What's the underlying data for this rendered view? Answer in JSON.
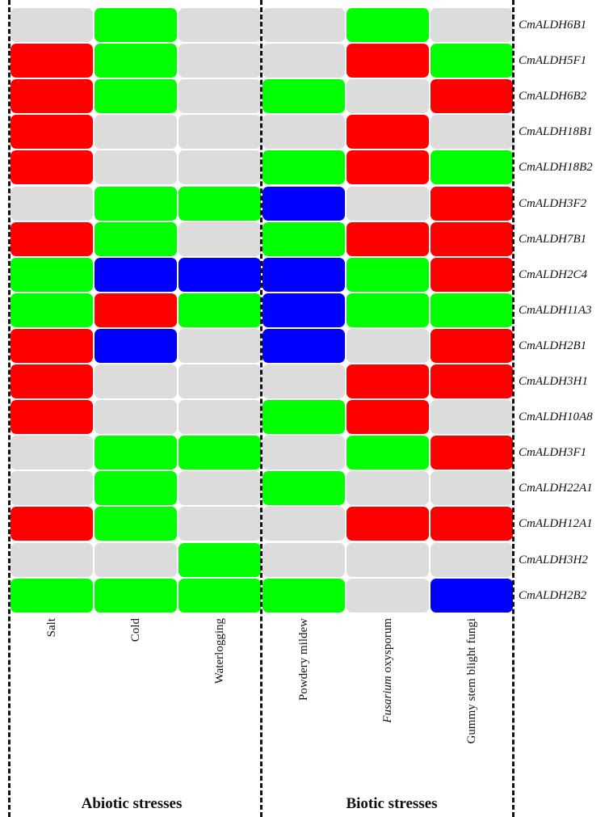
{
  "chart_data": {
    "type": "heatmap",
    "title": "",
    "genes": [
      "CmALDH6B1",
      "CmALDH5F1",
      "CmALDH6B2",
      "CmALDH18B1",
      "CmALDH18B2",
      "CmALDH3F2",
      "CmALDH7B1",
      "CmALDH2C4",
      "CmALDH11A3",
      "CmALDH2B1",
      "CmALDH3H1",
      "CmALDH10A8",
      "CmALDH3F1",
      "CmALDH22A1",
      "CmALDH12A1",
      "CmALDH3H2",
      "CmALDH2B2"
    ],
    "conditions": [
      {
        "label": "Salt",
        "italic_prefix": ""
      },
      {
        "label": "Cold",
        "italic_prefix": ""
      },
      {
        "label": "Waterlogging",
        "italic_prefix": ""
      },
      {
        "label": "Powdery mildew",
        "italic_prefix": ""
      },
      {
        "label": " oxysporum",
        "italic_prefix": "Fusarium"
      },
      {
        "label": "Gummy stem blight fungi",
        "italic_prefix": ""
      }
    ],
    "groups": [
      {
        "label": "Abiotic stresses",
        "columns": [
          0,
          1,
          2
        ]
      },
      {
        "label": "Biotic stresses",
        "columns": [
          3,
          4,
          5
        ]
      }
    ],
    "colors": {
      "red": "#ff0000",
      "green": "#00ff00",
      "blue": "#0000ff",
      "gray": "#dcdcdc"
    },
    "matrix": [
      [
        "gray",
        "green",
        "gray",
        "gray",
        "green",
        "gray"
      ],
      [
        "red",
        "green",
        "gray",
        "gray",
        "red",
        "green"
      ],
      [
        "red",
        "green",
        "gray",
        "green",
        "gray",
        "red"
      ],
      [
        "red",
        "gray",
        "gray",
        "gray",
        "red",
        "gray"
      ],
      [
        "red",
        "gray",
        "gray",
        "green",
        "red",
        "green"
      ],
      [
        "gray",
        "green",
        "green",
        "blue",
        "gray",
        "red"
      ],
      [
        "red",
        "green",
        "gray",
        "green",
        "red",
        "red"
      ],
      [
        "green",
        "blue",
        "blue",
        "blue",
        "green",
        "red"
      ],
      [
        "green",
        "red",
        "green",
        "blue",
        "green",
        "green"
      ],
      [
        "red",
        "blue",
        "gray",
        "blue",
        "gray",
        "red"
      ],
      [
        "red",
        "gray",
        "gray",
        "gray",
        "red",
        "red"
      ],
      [
        "red",
        "gray",
        "gray",
        "green",
        "red",
        "gray"
      ],
      [
        "gray",
        "green",
        "green",
        "gray",
        "green",
        "red"
      ],
      [
        "gray",
        "green",
        "gray",
        "green",
        "gray",
        "gray"
      ],
      [
        "red",
        "green",
        "gray",
        "gray",
        "red",
        "red"
      ],
      [
        "gray",
        "gray",
        "green",
        "gray",
        "gray",
        "gray"
      ],
      [
        "green",
        "green",
        "green",
        "green",
        "gray",
        "blue"
      ]
    ]
  }
}
